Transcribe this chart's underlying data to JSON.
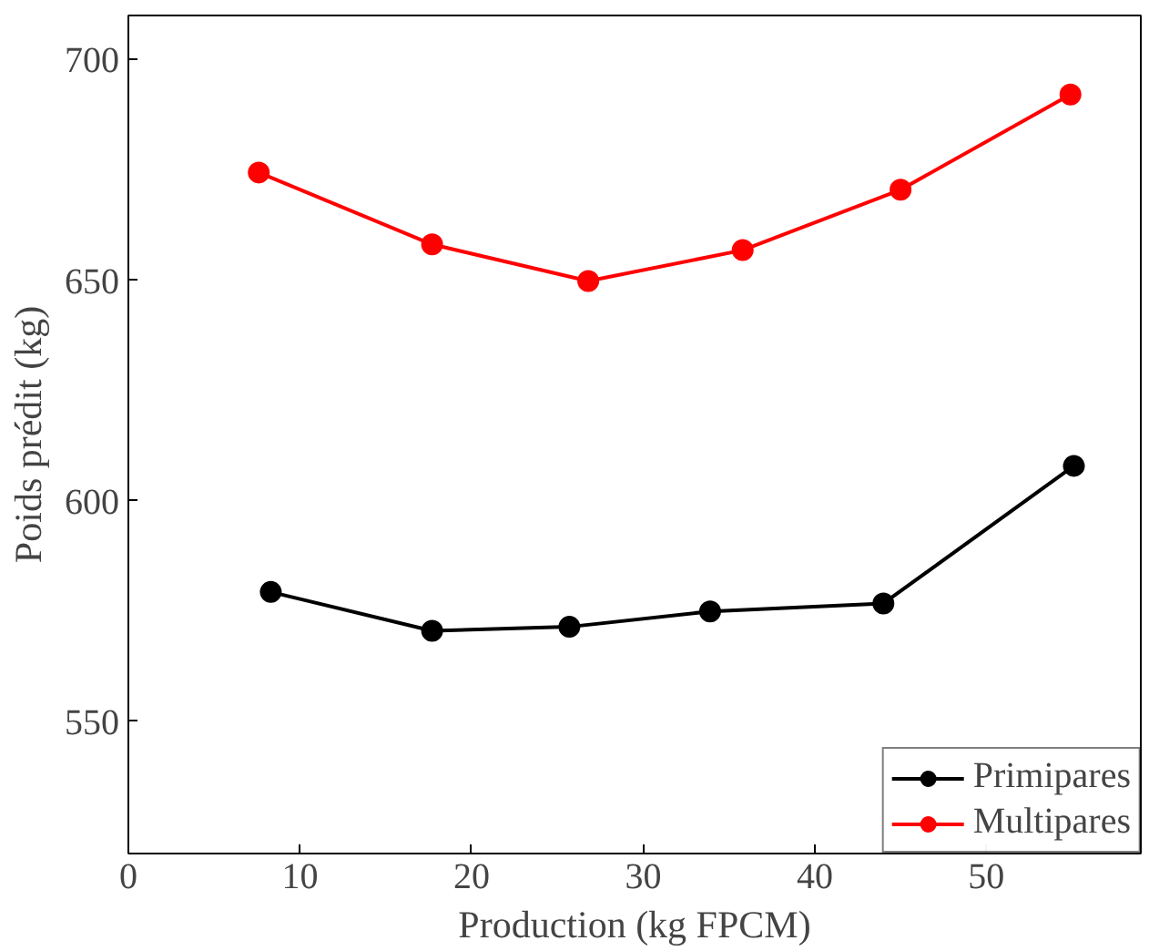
{
  "chart_data": {
    "type": "line",
    "xlabel": "Production (kg FPCM)",
    "ylabel": "Poids prédit (kg)",
    "xlim": [
      0,
      59
    ],
    "ylim": [
      520,
      710
    ],
    "xticks": [
      0,
      10,
      20,
      30,
      40,
      50
    ],
    "yticks": [
      550,
      600,
      650,
      700
    ],
    "grid": false,
    "legend": "bottom right",
    "marker": "circle",
    "line_style": "solid",
    "series": [
      {
        "name": "Primipares",
        "color": "#000000",
        "x": [
          8.3,
          17.7,
          25.7,
          33.9,
          44.0,
          55.1
        ],
        "values": [
          579.3,
          570.5,
          571.4,
          574.9,
          576.7,
          607.9
        ]
      },
      {
        "name": "Multipares",
        "color": "#ff0000",
        "x": [
          7.6,
          17.7,
          26.8,
          35.8,
          45.0,
          54.9
        ],
        "values": [
          674.4,
          658.1,
          649.8,
          656.8,
          670.5,
          692.1
        ]
      }
    ]
  }
}
